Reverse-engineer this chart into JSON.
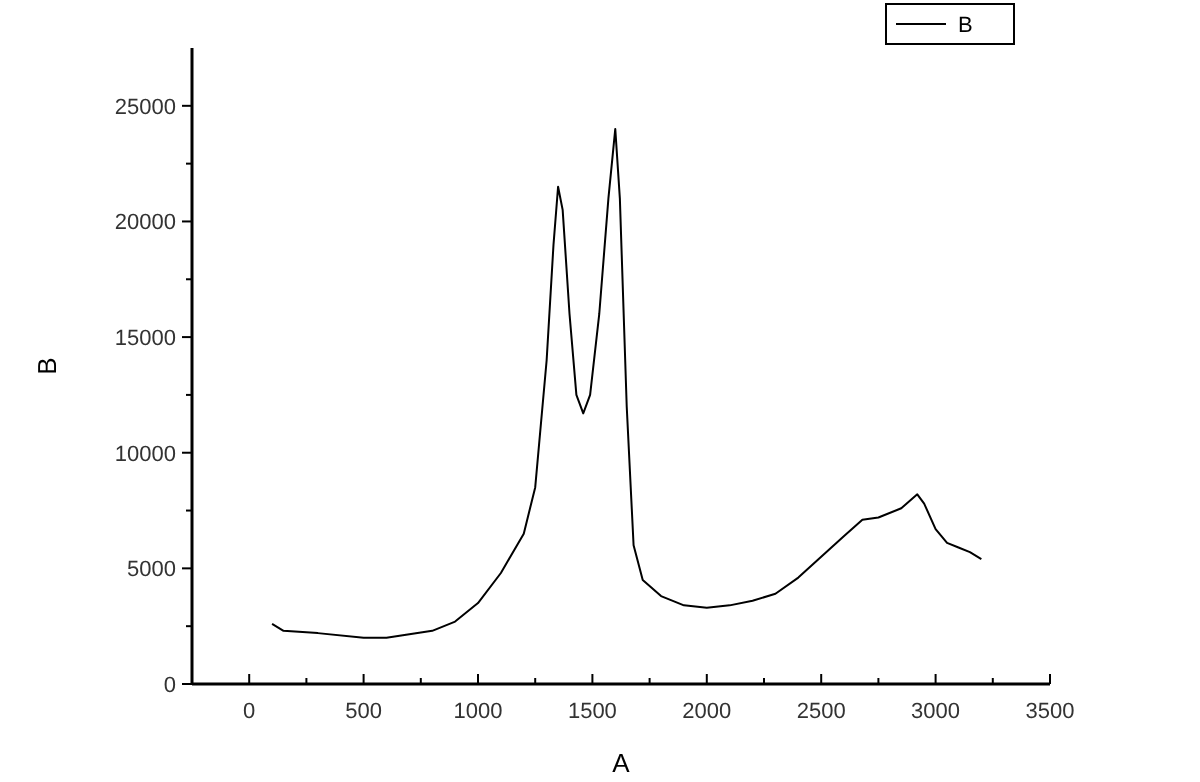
{
  "chart_data": {
    "type": "line",
    "xlabel": "A",
    "ylabel": "B",
    "legend": "top right",
    "grid": false,
    "marker": "none",
    "line_style": "solid",
    "xlim": [
      -250,
      3500
    ],
    "xticks": [
      {
        "value": -250,
        "label": null
      },
      0,
      {
        "value": 250,
        "label": null
      },
      500,
      {
        "value": 750,
        "label": null
      },
      1000,
      {
        "value": 1250,
        "label": null
      },
      1500,
      {
        "value": 1750,
        "label": null
      },
      2000,
      {
        "value": 2250,
        "label": null
      },
      2500,
      {
        "value": 2750,
        "label": null
      },
      3000,
      {
        "value": 3250,
        "label": null
      },
      3500
    ],
    "ylim": [
      0,
      27500
    ],
    "yticks": [
      0,
      {
        "value": 2500,
        "label": null
      },
      5000,
      {
        "value": 7500,
        "label": null
      },
      10000,
      {
        "value": 12500,
        "label": null
      },
      15000,
      {
        "value": 17500,
        "label": null
      },
      20000,
      {
        "value": 22500,
        "label": null
      },
      25000
    ],
    "series": [
      {
        "name": "B",
        "color": "#000000",
        "x": [
          100,
          150,
          300,
          500,
          600,
          800,
          900,
          1000,
          1100,
          1200,
          1250,
          1300,
          1330,
          1350,
          1370,
          1400,
          1430,
          1460,
          1490,
          1530,
          1570,
          1600,
          1620,
          1650,
          1680,
          1720,
          1800,
          1900,
          2000,
          2100,
          2200,
          2300,
          2400,
          2500,
          2600,
          2680,
          2750,
          2850,
          2920,
          2950,
          3000,
          3050,
          3100,
          3150,
          3200
        ],
        "values": [
          2600,
          2300,
          2200,
          2000,
          2000,
          2300,
          2700,
          3500,
          4800,
          6500,
          8500,
          14000,
          19000,
          21500,
          20500,
          16000,
          12500,
          11700,
          12500,
          16000,
          21000,
          24000,
          21000,
          12000,
          6000,
          4500,
          3800,
          3400,
          3300,
          3400,
          3600,
          3900,
          4600,
          5500,
          6400,
          7100,
          7200,
          7600,
          8200,
          7800,
          6700,
          6100,
          5900,
          5700,
          5400
        ]
      }
    ]
  }
}
